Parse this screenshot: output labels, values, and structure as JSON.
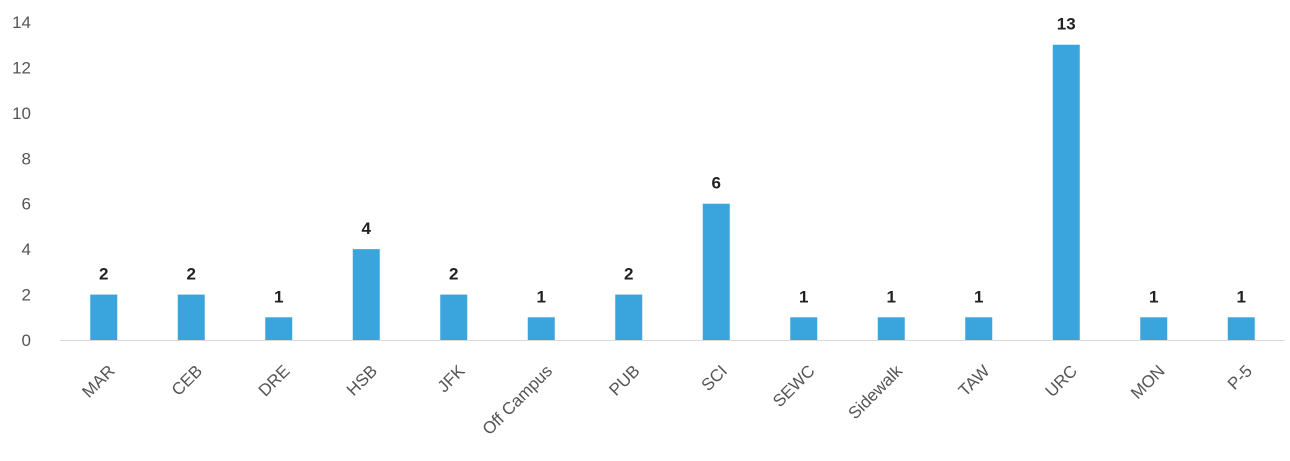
{
  "chart_data": {
    "type": "bar",
    "title": "",
    "xlabel": "",
    "ylabel": "",
    "categories": [
      "MAR",
      "CEB",
      "DRE",
      "HSB",
      "JFK",
      "Off Campus",
      "PUB",
      "SCI",
      "SEWC",
      "Sidewalk",
      "TAW",
      "URC",
      "MON",
      "P-5"
    ],
    "values": [
      2,
      2,
      1,
      4,
      2,
      1,
      2,
      6,
      1,
      1,
      1,
      13,
      1,
      1
    ],
    "ylim": [
      0,
      14
    ],
    "yticks": [
      0,
      2,
      4,
      6,
      8,
      10,
      12,
      14
    ],
    "grid": false,
    "legend": "none",
    "data_labels": true,
    "bar_color": "#3aa4dc",
    "axis_color": "#d9d9d9"
  }
}
